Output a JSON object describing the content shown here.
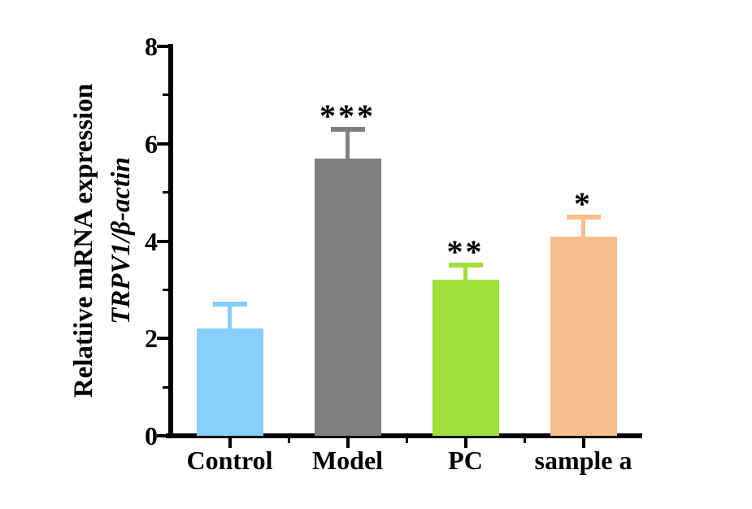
{
  "figure": {
    "background": "#ffffff",
    "axis_color": "#000000",
    "text_color": "#000000"
  },
  "chart_data": {
    "type": "bar",
    "title": "",
    "ylabel_line1": "Relatiive mRNA expression",
    "ylabel_line2": "TRPV1/β-actin",
    "xlabel": "",
    "categories": [
      "Control",
      "Model",
      "PC",
      "sample a"
    ],
    "values": [
      2.2,
      5.7,
      3.2,
      4.1
    ],
    "errors": [
      0.5,
      0.6,
      0.3,
      0.4
    ],
    "significance": [
      "",
      "***",
      "**",
      "*"
    ],
    "bar_colors": [
      "#87CEFA",
      "#7F7F7F",
      "#9FE03A",
      "#F6BE8B"
    ],
    "ylim": [
      0,
      8
    ],
    "y_major_ticks": [
      0,
      2,
      4,
      6,
      8
    ],
    "y_minor_ticks": [
      1,
      3,
      5,
      7
    ],
    "grid": false,
    "legend": "none",
    "error_bar_style": "upper-only, cap, same color as bar"
  }
}
